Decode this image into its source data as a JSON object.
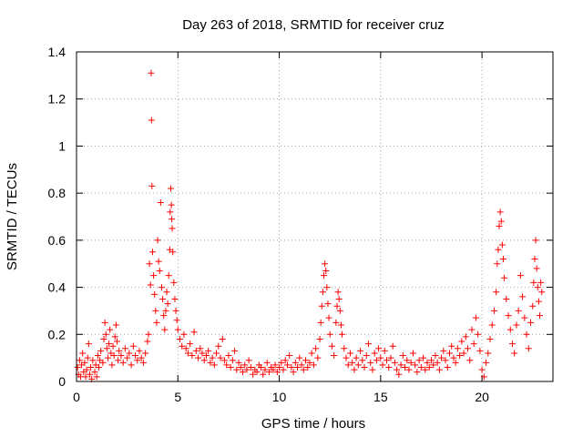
{
  "chart_data": {
    "type": "scatter",
    "title": "Day 263 of 2018, SRMTID for receiver cruz",
    "xlabel": "GPS time / hours",
    "ylabel": "SRMTID / TECUs",
    "xlim": [
      0,
      23.5
    ],
    "ylim": [
      0,
      1.4
    ],
    "xticks": [
      0,
      5,
      10,
      15,
      20
    ],
    "xtick_labels": [
      "0",
      "5",
      "10",
      "15",
      "20"
    ],
    "yticks": [
      0,
      0.2,
      0.4,
      0.6,
      0.8,
      1,
      1.2,
      1.4
    ],
    "ytick_labels": [
      "0",
      "0.2",
      "0.4",
      "0.6",
      "0.8",
      "1",
      "1.2",
      "1.4"
    ],
    "grid": true,
    "marker": "+",
    "color": "#ff0000",
    "series": [
      {
        "name": "SRMTID",
        "points": [
          [
            0.05,
            0.06
          ],
          [
            0.1,
            0.03
          ],
          [
            0.15,
            0.09
          ],
          [
            0.2,
            0.02
          ],
          [
            0.25,
            0.07
          ],
          [
            0.3,
            0.12
          ],
          [
            0.35,
            0.04
          ],
          [
            0.4,
            0.08
          ],
          [
            0.45,
            0.02
          ],
          [
            0.5,
            0.05
          ],
          [
            0.55,
            0.1
          ],
          [
            0.6,
            0.16
          ],
          [
            0.65,
            0.03
          ],
          [
            0.7,
            0.06
          ],
          [
            0.75,
            0.01
          ],
          [
            0.8,
            0.09
          ],
          [
            0.9,
            0.04
          ],
          [
            0.95,
            0.07
          ],
          [
            1.0,
            0.02
          ],
          [
            1.05,
            0.11
          ],
          [
            1.1,
            0.06
          ],
          [
            1.15,
            0.09
          ],
          [
            1.2,
            0.13
          ],
          [
            1.3,
            0.08
          ],
          [
            1.35,
            0.18
          ],
          [
            1.4,
            0.25
          ],
          [
            1.45,
            0.2
          ],
          [
            1.5,
            0.14
          ],
          [
            1.55,
            0.1
          ],
          [
            1.6,
            0.16
          ],
          [
            1.65,
            0.22
          ],
          [
            1.7,
            0.12
          ],
          [
            1.75,
            0.07
          ],
          [
            1.8,
            0.15
          ],
          [
            1.85,
            0.11
          ],
          [
            1.9,
            0.19
          ],
          [
            1.95,
            0.24
          ],
          [
            2.0,
            0.17
          ],
          [
            2.05,
            0.09
          ],
          [
            2.1,
            0.13
          ],
          [
            2.2,
            0.11
          ],
          [
            2.3,
            0.08
          ],
          [
            2.4,
            0.14
          ],
          [
            2.5,
            0.1
          ],
          [
            2.6,
            0.12
          ],
          [
            2.7,
            0.07
          ],
          [
            2.8,
            0.15
          ],
          [
            2.9,
            0.11
          ],
          [
            3.0,
            0.09
          ],
          [
            3.1,
            0.13
          ],
          [
            3.2,
            0.1
          ],
          [
            3.3,
            0.08
          ],
          [
            3.4,
            0.12
          ],
          [
            3.5,
            0.17
          ],
          [
            3.55,
            0.2
          ],
          [
            3.6,
            0.5
          ],
          [
            3.65,
            0.41
          ],
          [
            3.68,
            1.31
          ],
          [
            3.7,
            1.11
          ],
          [
            3.72,
            0.83
          ],
          [
            3.75,
            0.55
          ],
          [
            3.8,
            0.45
          ],
          [
            3.85,
            0.37
          ],
          [
            3.9,
            0.3
          ],
          [
            3.95,
            0.25
          ],
          [
            4.0,
            0.6
          ],
          [
            4.05,
            0.51
          ],
          [
            4.1,
            0.47
          ],
          [
            4.15,
            0.76
          ],
          [
            4.2,
            0.4
          ],
          [
            4.25,
            0.35
          ],
          [
            4.3,
            0.28
          ],
          [
            4.35,
            0.22
          ],
          [
            4.4,
            0.3
          ],
          [
            4.45,
            0.38
          ],
          [
            4.5,
            0.33
          ],
          [
            4.55,
            0.45
          ],
          [
            4.6,
            0.56
          ],
          [
            4.62,
            0.72
          ],
          [
            4.65,
            0.82
          ],
          [
            4.68,
            0.75
          ],
          [
            4.7,
            0.69
          ],
          [
            4.72,
            0.65
          ],
          [
            4.75,
            0.55
          ],
          [
            4.8,
            0.42
          ],
          [
            4.85,
            0.35
          ],
          [
            4.9,
            0.3
          ],
          [
            4.95,
            0.26
          ],
          [
            5.0,
            0.22
          ],
          [
            5.1,
            0.18
          ],
          [
            5.2,
            0.15
          ],
          [
            5.3,
            0.2
          ],
          [
            5.4,
            0.14
          ],
          [
            5.5,
            0.12
          ],
          [
            5.6,
            0.16
          ],
          [
            5.7,
            0.11
          ],
          [
            5.8,
            0.21
          ],
          [
            5.9,
            0.13
          ],
          [
            6.0,
            0.1
          ],
          [
            6.1,
            0.14
          ],
          [
            6.2,
            0.12
          ],
          [
            6.3,
            0.09
          ],
          [
            6.4,
            0.11
          ],
          [
            6.5,
            0.13
          ],
          [
            6.6,
            0.08
          ],
          [
            6.7,
            0.1
          ],
          [
            6.8,
            0.07
          ],
          [
            6.9,
            0.12
          ],
          [
            7.0,
            0.15
          ],
          [
            7.1,
            0.1
          ],
          [
            7.2,
            0.18
          ],
          [
            7.3,
            0.09
          ],
          [
            7.4,
            0.07
          ],
          [
            7.5,
            0.11
          ],
          [
            7.6,
            0.06
          ],
          [
            7.7,
            0.09
          ],
          [
            7.8,
            0.13
          ],
          [
            7.9,
            0.05
          ],
          [
            8.0,
            0.08
          ],
          [
            8.1,
            0.06
          ],
          [
            8.2,
            0.04
          ],
          [
            8.3,
            0.07
          ],
          [
            8.4,
            0.05
          ],
          [
            8.5,
            0.09
          ],
          [
            8.6,
            0.06
          ],
          [
            8.7,
            0.03
          ],
          [
            8.8,
            0.05
          ],
          [
            8.9,
            0.04
          ],
          [
            9.0,
            0.07
          ],
          [
            9.1,
            0.06
          ],
          [
            9.2,
            0.03
          ],
          [
            9.3,
            0.05
          ],
          [
            9.4,
            0.08
          ],
          [
            9.5,
            0.04
          ],
          [
            9.6,
            0.06
          ],
          [
            9.7,
            0.05
          ],
          [
            9.8,
            0.07
          ],
          [
            9.9,
            0.04
          ],
          [
            10.0,
            0.06
          ],
          [
            10.1,
            0.08
          ],
          [
            10.2,
            0.05
          ],
          [
            10.3,
            0.09
          ],
          [
            10.4,
            0.07
          ],
          [
            10.5,
            0.11
          ],
          [
            10.6,
            0.06
          ],
          [
            10.7,
            0.04
          ],
          [
            10.8,
            0.08
          ],
          [
            10.9,
            0.06
          ],
          [
            11.0,
            0.1
          ],
          [
            11.1,
            0.07
          ],
          [
            11.2,
            0.05
          ],
          [
            11.3,
            0.09
          ],
          [
            11.4,
            0.06
          ],
          [
            11.5,
            0.08
          ],
          [
            11.6,
            0.12
          ],
          [
            11.7,
            0.07
          ],
          [
            11.8,
            0.14
          ],
          [
            11.9,
            0.1
          ],
          [
            12.0,
            0.18
          ],
          [
            12.05,
            0.25
          ],
          [
            12.1,
            0.32
          ],
          [
            12.15,
            0.38
          ],
          [
            12.2,
            0.45
          ],
          [
            12.25,
            0.5
          ],
          [
            12.3,
            0.47
          ],
          [
            12.35,
            0.4
          ],
          [
            12.4,
            0.33
          ],
          [
            12.45,
            0.27
          ],
          [
            12.5,
            0.2
          ],
          [
            12.6,
            0.15
          ],
          [
            12.7,
            0.11
          ],
          [
            12.8,
            0.25
          ],
          [
            12.85,
            0.32
          ],
          [
            12.9,
            0.38
          ],
          [
            12.95,
            0.35
          ],
          [
            13.0,
            0.3
          ],
          [
            13.05,
            0.24
          ],
          [
            13.1,
            0.2
          ],
          [
            13.2,
            0.14
          ],
          [
            13.3,
            0.1
          ],
          [
            13.4,
            0.07
          ],
          [
            13.5,
            0.12
          ],
          [
            13.6,
            0.08
          ],
          [
            13.7,
            0.05
          ],
          [
            13.8,
            0.1
          ],
          [
            13.9,
            0.07
          ],
          [
            14.0,
            0.13
          ],
          [
            14.1,
            0.09
          ],
          [
            14.2,
            0.06
          ],
          [
            14.3,
            0.11
          ],
          [
            14.4,
            0.16
          ],
          [
            14.5,
            0.08
          ],
          [
            14.6,
            0.05
          ],
          [
            14.7,
            0.12
          ],
          [
            14.8,
            0.09
          ],
          [
            14.9,
            0.14
          ],
          [
            15.0,
            0.1
          ],
          [
            15.1,
            0.07
          ],
          [
            15.2,
            0.13
          ],
          [
            15.3,
            0.09
          ],
          [
            15.4,
            0.06
          ],
          [
            15.5,
            0.1
          ],
          [
            15.6,
            0.15
          ],
          [
            15.7,
            0.08
          ],
          [
            15.8,
            0.05
          ],
          [
            15.9,
            0.03
          ],
          [
            16.0,
            0.07
          ],
          [
            16.1,
            0.11
          ],
          [
            16.2,
            0.06
          ],
          [
            16.3,
            0.09
          ],
          [
            16.4,
            0.05
          ],
          [
            16.5,
            0.08
          ],
          [
            16.6,
            0.12
          ],
          [
            16.7,
            0.07
          ],
          [
            16.8,
            0.04
          ],
          [
            16.9,
            0.09
          ],
          [
            17.0,
            0.06
          ],
          [
            17.1,
            0.1
          ],
          [
            17.2,
            0.05
          ],
          [
            17.3,
            0.08
          ],
          [
            17.4,
            0.06
          ],
          [
            17.5,
            0.09
          ],
          [
            17.6,
            0.07
          ],
          [
            17.7,
            0.11
          ],
          [
            17.8,
            0.08
          ],
          [
            17.9,
            0.05
          ],
          [
            18.0,
            0.1
          ],
          [
            18.1,
            0.13
          ],
          [
            18.2,
            0.09
          ],
          [
            18.3,
            0.06
          ],
          [
            18.4,
            0.12
          ],
          [
            18.5,
            0.15
          ],
          [
            18.6,
            0.1
          ],
          [
            18.7,
            0.08
          ],
          [
            18.8,
            0.14
          ],
          [
            18.9,
            0.11
          ],
          [
            19.0,
            0.17
          ],
          [
            19.1,
            0.12
          ],
          [
            19.2,
            0.19
          ],
          [
            19.3,
            0.14
          ],
          [
            19.4,
            0.09
          ],
          [
            19.5,
            0.22
          ],
          [
            19.6,
            0.16
          ],
          [
            19.7,
            0.27
          ],
          [
            19.8,
            0.2
          ],
          [
            19.9,
            0.13
          ],
          [
            20.0,
            0.05
          ],
          [
            20.1,
            0.02
          ],
          [
            20.2,
            0.08
          ],
          [
            20.3,
            0.12
          ],
          [
            20.4,
            0.18
          ],
          [
            20.5,
            0.24
          ],
          [
            20.6,
            0.3
          ],
          [
            20.7,
            0.38
          ],
          [
            20.75,
            0.5
          ],
          [
            20.8,
            0.56
          ],
          [
            20.85,
            0.66
          ],
          [
            20.9,
            0.72
          ],
          [
            20.95,
            0.68
          ],
          [
            21.0,
            0.58
          ],
          [
            21.05,
            0.52
          ],
          [
            21.1,
            0.44
          ],
          [
            21.2,
            0.35
          ],
          [
            21.3,
            0.28
          ],
          [
            21.4,
            0.22
          ],
          [
            21.5,
            0.16
          ],
          [
            21.6,
            0.12
          ],
          [
            21.7,
            0.24
          ],
          [
            21.8,
            0.3
          ],
          [
            21.9,
            0.45
          ],
          [
            22.0,
            0.36
          ],
          [
            22.1,
            0.27
          ],
          [
            22.2,
            0.2
          ],
          [
            22.3,
            0.14
          ],
          [
            22.4,
            0.25
          ],
          [
            22.5,
            0.32
          ],
          [
            22.55,
            0.42
          ],
          [
            22.6,
            0.52
          ],
          [
            22.65,
            0.6
          ],
          [
            22.7,
            0.48
          ],
          [
            22.75,
            0.4
          ],
          [
            22.8,
            0.34
          ],
          [
            22.85,
            0.28
          ],
          [
            22.9,
            0.42
          ],
          [
            22.95,
            0.38
          ]
        ]
      }
    ]
  }
}
